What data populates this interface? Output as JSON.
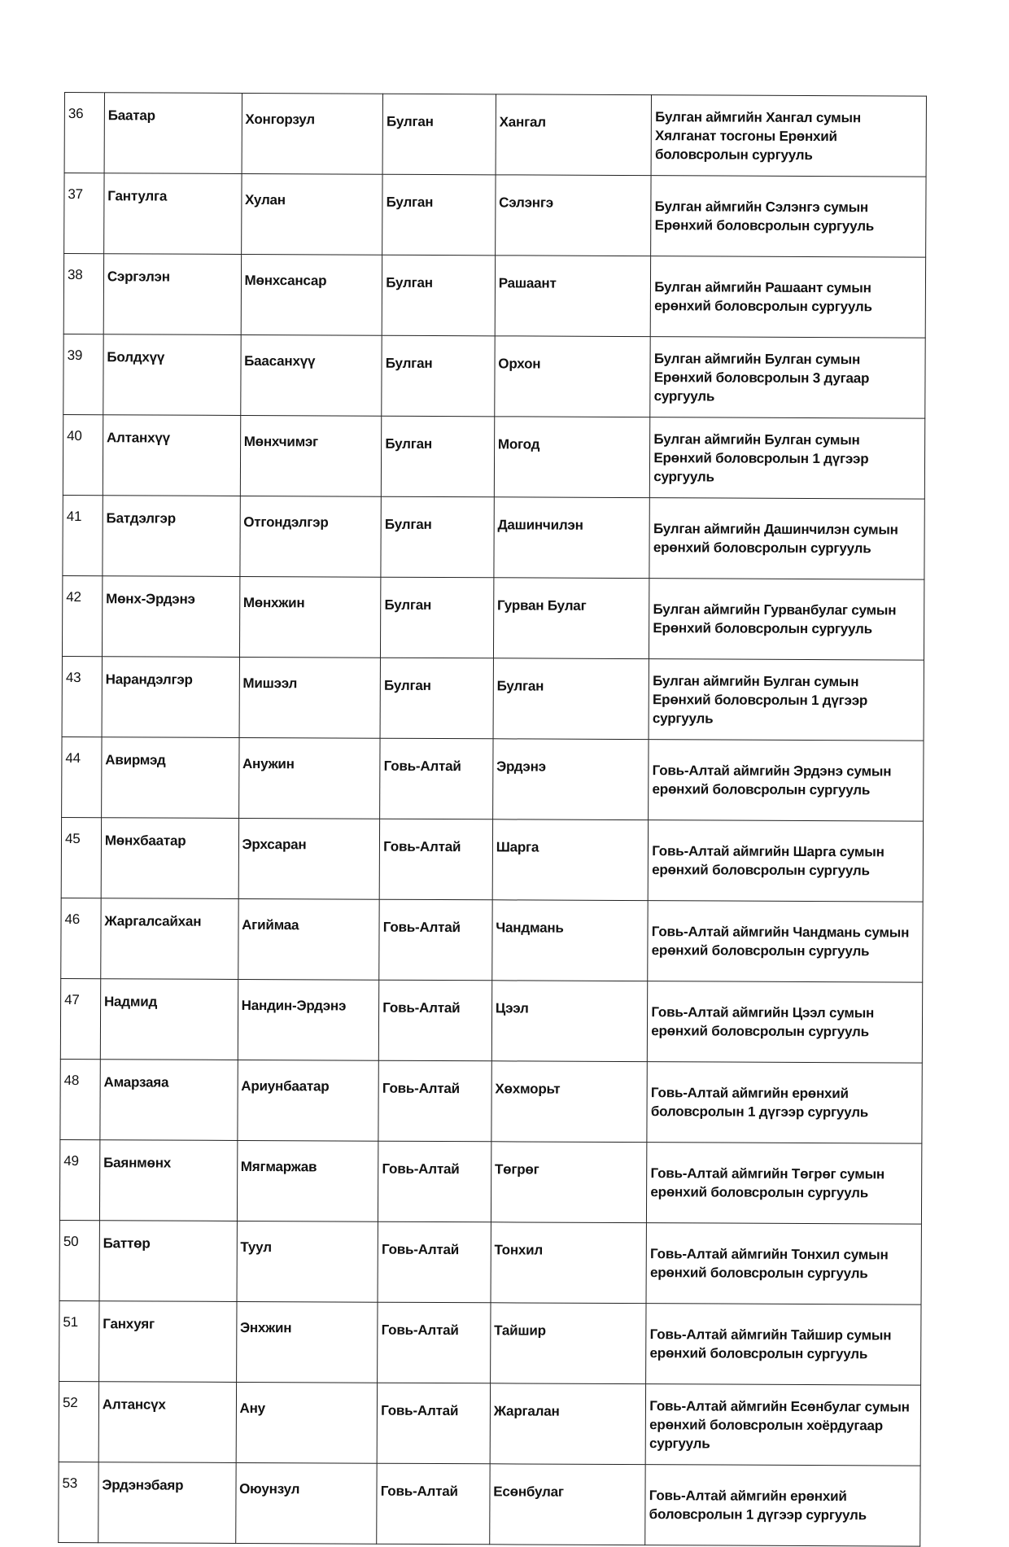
{
  "table": {
    "rows": [
      {
        "no": "36",
        "first": "Баатар",
        "second": "Хонгорзул",
        "aimag": "Булган",
        "sum": "Хангал",
        "school": "Булган аймгийн Хангал сумын Хялганат тосгоны Ерөнхий боловсролын сургууль"
      },
      {
        "no": "37",
        "first": "Гантулга",
        "second": "Хулан",
        "aimag": "Булган",
        "sum": "Сэлэнгэ",
        "school": "Булган аймгийн Сэлэнгэ сумын Ерөнхий боловсролын сургууль"
      },
      {
        "no": "38",
        "first": "Сэргэлэн",
        "second": "Мөнхсансар",
        "aimag": "Булган",
        "sum": "Рашаант",
        "school": "Булган аймгийн Рашаант сумын ерөнхий боловсролын сургууль"
      },
      {
        "no": "39",
        "first": "Болдхүү",
        "second": "Баасанхүү",
        "aimag": "Булган",
        "sum": "Орхон",
        "school": "Булган аймгийн Булган сумын Ерөнхий боловсролын 3 дугаар сургууль"
      },
      {
        "no": "40",
        "first": "Алтанхүү",
        "second": "Мөнхчимэг",
        "aimag": "Булган",
        "sum": "Могод",
        "school": "Булган аймгийн Булган сумын Ерөнхий боловсролын 1 дүгээр сургууль"
      },
      {
        "no": "41",
        "first": "Батдэлгэр",
        "second": "Отгондэлгэр",
        "aimag": "Булган",
        "sum": "Дашинчилэн",
        "school": "Булган аймгийн Дашинчилэн сумын ерөнхий боловсролын сургууль"
      },
      {
        "no": "42",
        "first": "Мөнх-Эрдэнэ",
        "second": "Мөнхжин",
        "aimag": "Булган",
        "sum": "Гурван Булаг",
        "school": "Булган аймгийн Гурванбулаг сумын Ерөнхий боловсролын сургууль"
      },
      {
        "no": "43",
        "first": "Нарандэлгэр",
        "second": "Мишээл",
        "aimag": "Булган",
        "sum": "Булган",
        "school": "Булган аймгийн Булган сумын Ерөнхий боловсролын 1 дүгээр сургууль"
      },
      {
        "no": "44",
        "first": "Авирмэд",
        "second": "Анужин",
        "aimag": "Говь-Алтай",
        "sum": "Эрдэнэ",
        "school": "Говь-Алтай аймгийн Эрдэнэ сумын ерөнхий боловсролын сургууль"
      },
      {
        "no": "45",
        "first": "Мөнхбаатар",
        "second": "Эрхсаран",
        "aimag": "Говь-Алтай",
        "sum": "Шарга",
        "school": "Говь-Алтай аймгийн Шарга сумын ерөнхий боловсролын сургууль"
      },
      {
        "no": "46",
        "first": "Жаргалсайхан",
        "second": "Агиймаа",
        "aimag": "Говь-Алтай",
        "sum": "Чандмань",
        "school": "Говь-Алтай аймгийн Чандмань сумын ерөнхий боловсролын сургууль"
      },
      {
        "no": "47",
        "first": "Надмид",
        "second": "Нандин-Эрдэнэ",
        "aimag": "Говь-Алтай",
        "sum": "Цээл",
        "school": "Говь-Алтай аймгийн Цээл сумын ерөнхий боловсролын сургууль"
      },
      {
        "no": "48",
        "first": "Амарзаяа",
        "second": "Ариунбаатар",
        "aimag": "Говь-Алтай",
        "sum": "Хөхморьт",
        "school": "Говь-Алтай аймгийн ерөнхий боловсролын 1 дүгээр сургууль"
      },
      {
        "no": "49",
        "first": "Баянмөнх",
        "second": "Мягмаржав",
        "aimag": "Говь-Алтай",
        "sum": "Төгрөг",
        "school": "Говь-Алтай аймгийн Төгрөг сумын ерөнхий боловсролын сургууль"
      },
      {
        "no": "50",
        "first": "Баттөр",
        "second": "Туул",
        "aimag": "Говь-Алтай",
        "sum": "Тонхил",
        "school": "Говь-Алтай аймгийн Тонхил сумын ерөнхий боловсролын сургууль"
      },
      {
        "no": "51",
        "first": "Ганхуяг",
        "second": "Энхжин",
        "aimag": "Говь-Алтай",
        "sum": "Тайшир",
        "school": "Говь-Алтай аймгийн Тайшир сумын ерөнхий боловсролын сургууль"
      },
      {
        "no": "52",
        "first": "Алтансүх",
        "second": "Ану",
        "aimag": "Говь-Алтай",
        "sum": "Жаргалан",
        "school": "Говь-Алтай аймгийн Есөнбулаг сумын ерөнхий боловсролын хоёрдугаар сургууль"
      },
      {
        "no": "53",
        "first": "Эрдэнэбаяр",
        "second": "Оюунзул",
        "aimag": "Говь-Алтай",
        "sum": "Есөнбулаг",
        "school": "Говь-Алтай аймгийн ерөнхий боловсролын 1 дүгээр сургууль"
      }
    ]
  }
}
